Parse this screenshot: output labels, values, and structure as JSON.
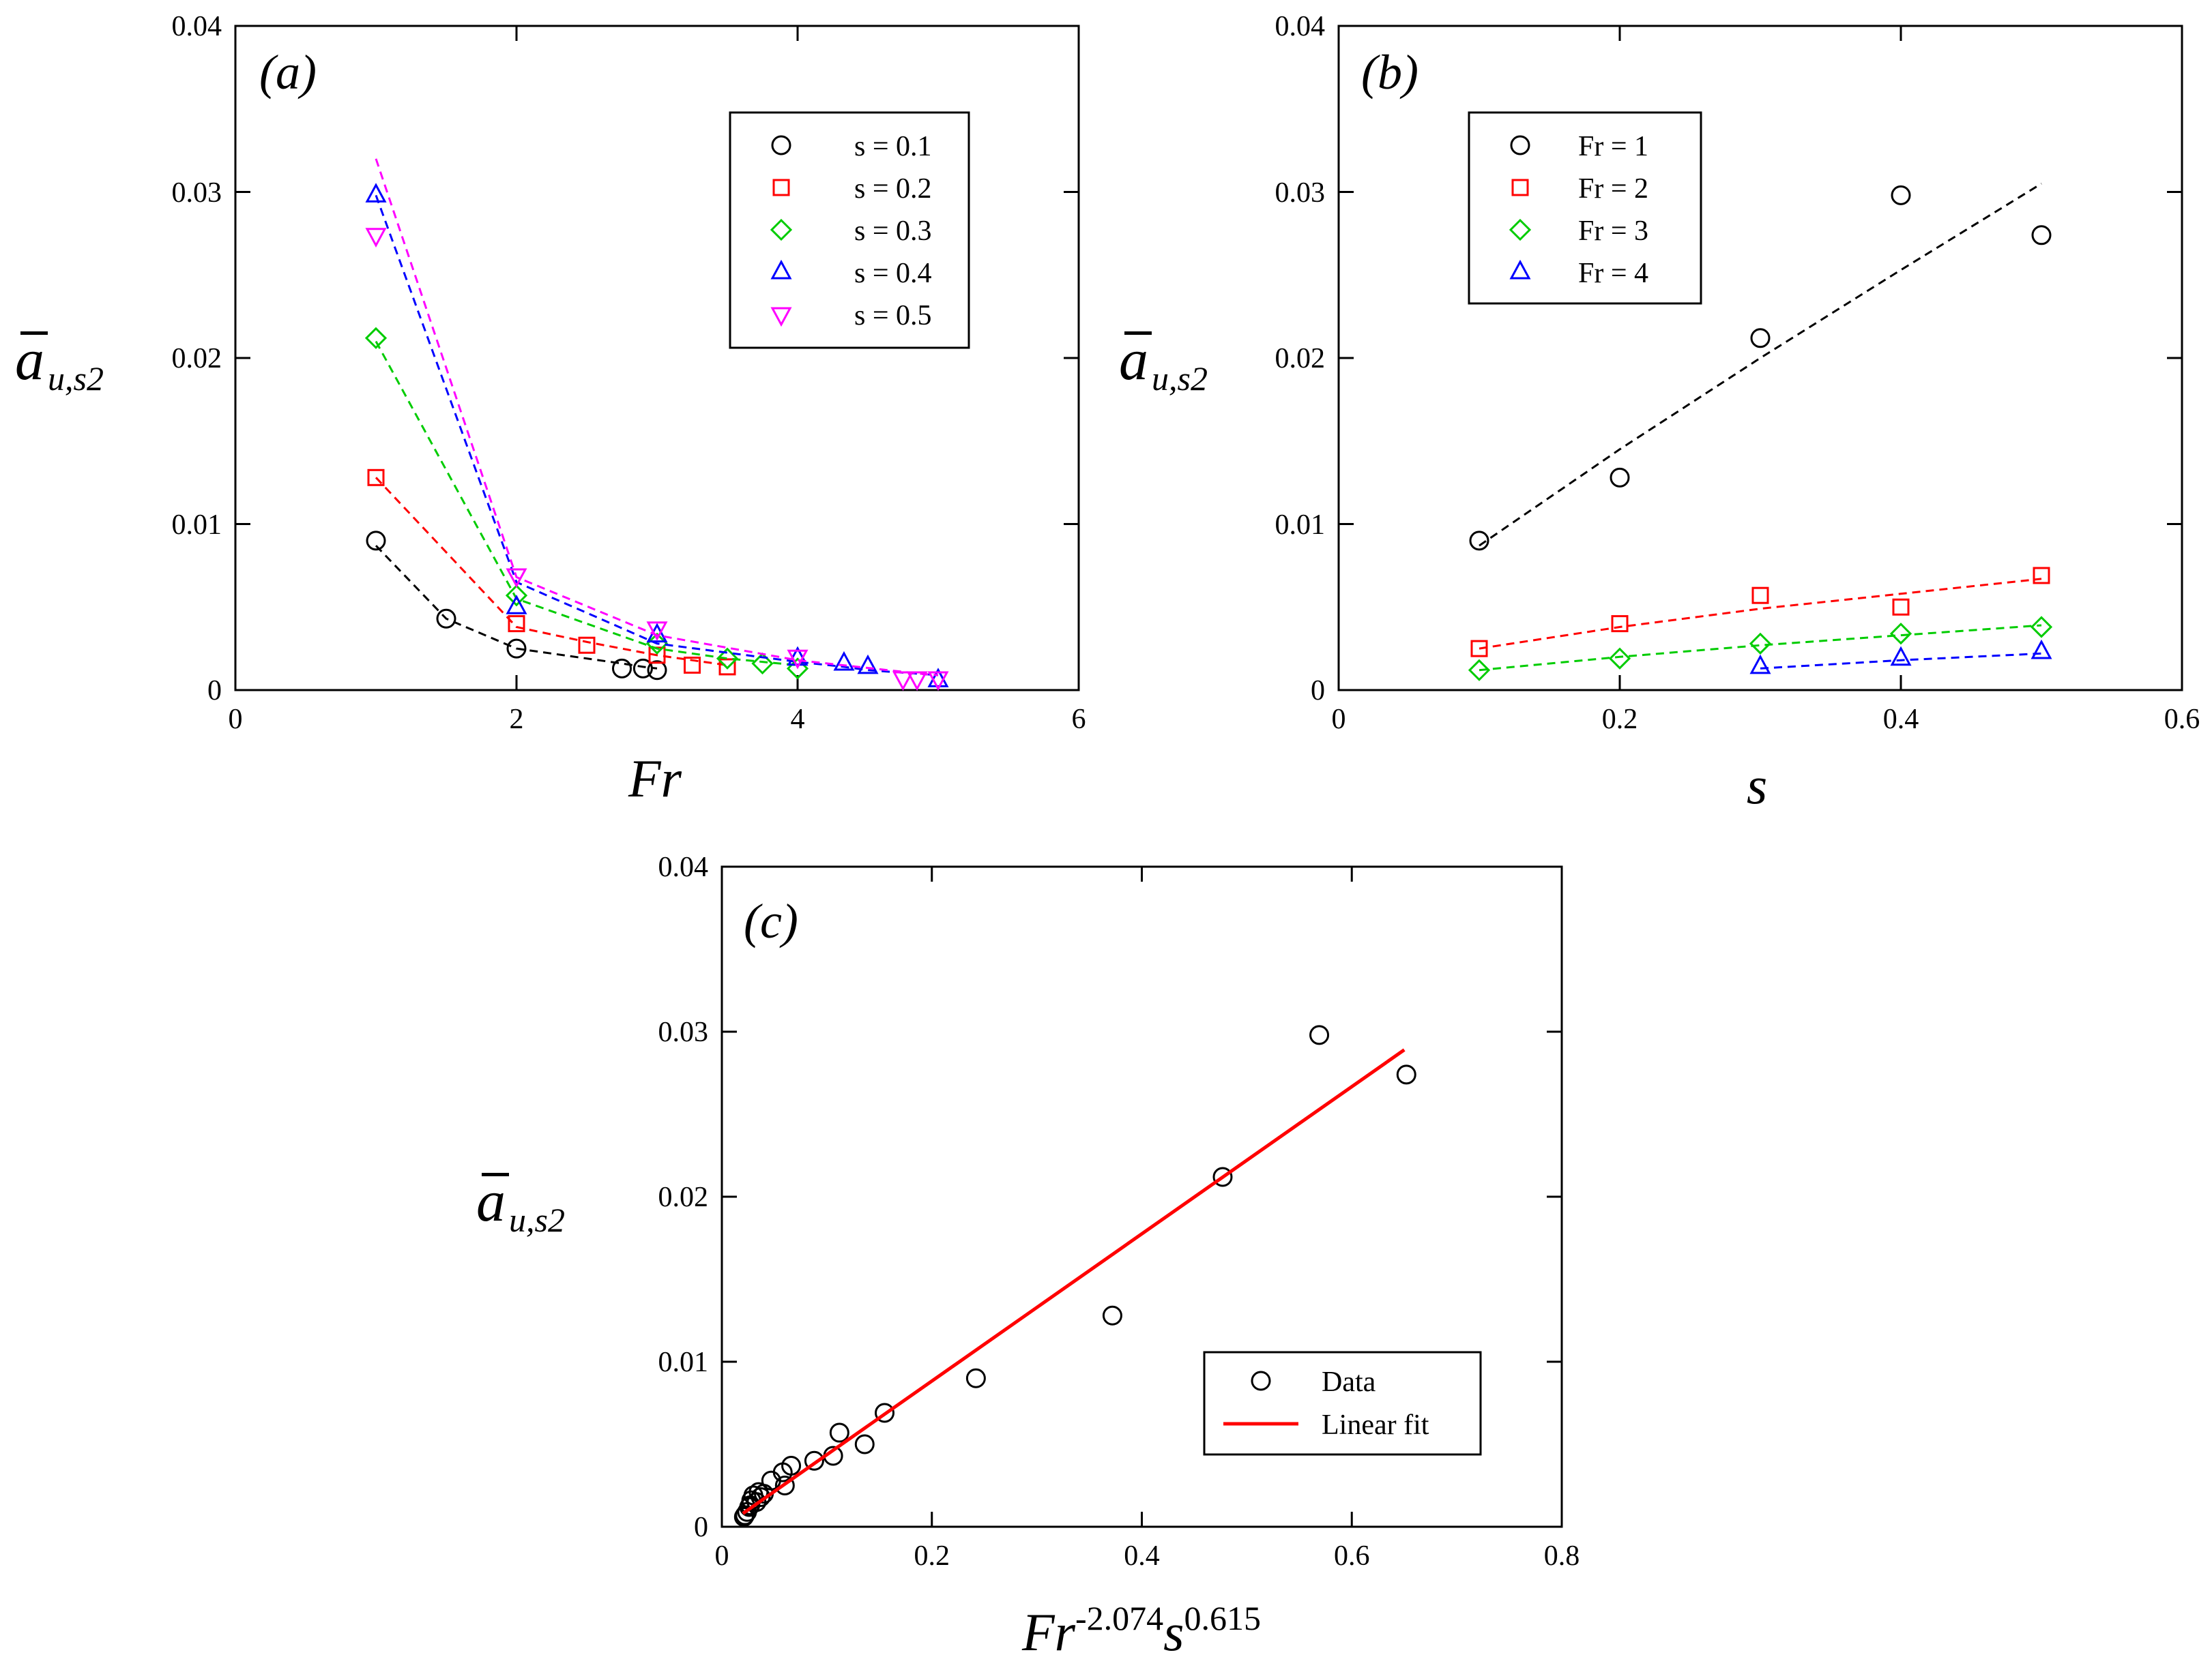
{
  "chart_data": [
    {
      "panel": "(a)",
      "type": "scatter",
      "xlabel": "Fr",
      "ylabel": "ā_u,s2",
      "xlim": [
        0,
        6
      ],
      "ylim": [
        0,
        0.04
      ],
      "xticks": [
        "0",
        "2",
        "4",
        "6"
      ],
      "yticks": [
        "0",
        "0.01",
        "0.02",
        "0.03",
        "0.04"
      ],
      "legend_position": "top-right",
      "series": [
        {
          "name": "s = 0.1",
          "marker": "circle",
          "color": "#000000",
          "x": [
            1,
            1.5,
            2,
            2.75,
            2.9,
            3
          ],
          "y": [
            0.009,
            0.0043,
            0.0025,
            0.0013,
            0.0013,
            0.0012
          ],
          "fit_x": [
            1,
            1.5,
            2,
            2.75,
            2.9,
            3
          ],
          "fit_y": [
            0.0087,
            0.0043,
            0.0025,
            0.0016,
            0.0014,
            0.0013
          ]
        },
        {
          "name": "s = 0.2",
          "marker": "square",
          "color": "#ff0000",
          "x": [
            1,
            2,
            2.5,
            3,
            3.25,
            3.5
          ],
          "y": [
            0.0128,
            0.004,
            0.0027,
            0.0021,
            0.0015,
            0.0014
          ],
          "fit_x": [
            1,
            2,
            2.5,
            3,
            3.25,
            3.5
          ],
          "fit_y": [
            0.0128,
            0.0038,
            0.0029,
            0.0021,
            0.0018,
            0.0015
          ]
        },
        {
          "name": "s = 0.3",
          "marker": "diamond",
          "color": "#00cc00",
          "x": [
            1,
            2,
            3,
            3.5,
            3.75,
            4
          ],
          "y": [
            0.0212,
            0.0057,
            0.0028,
            0.0019,
            0.0016,
            0.0013
          ],
          "fit_x": [
            1,
            2,
            3,
            3.5,
            3.75,
            4
          ],
          "fit_y": [
            0.021,
            0.0055,
            0.0025,
            0.0019,
            0.0017,
            0.0015
          ]
        },
        {
          "name": "s = 0.4",
          "marker": "triangle-up",
          "color": "#0000ff",
          "x": [
            1,
            2,
            3,
            4,
            4.33,
            4.5,
            5
          ],
          "y": [
            0.0298,
            0.005,
            0.0033,
            0.0019,
            0.0016,
            0.0014,
            0.0006
          ],
          "fit_x": [
            1,
            2,
            3,
            4,
            4.33,
            4.5,
            5
          ],
          "fit_y": [
            0.0298,
            0.0065,
            0.0028,
            0.0017,
            0.0014,
            0.0012,
            0.0009
          ]
        },
        {
          "name": "s = 0.5",
          "marker": "triangle-down",
          "color": "#ff00ff",
          "x": [
            1,
            2,
            3,
            4,
            4.75,
            4.85,
            5
          ],
          "y": [
            0.0274,
            0.0069,
            0.0037,
            0.002,
            0.0007,
            0.0007,
            0.0007
          ],
          "fit_x": [
            1,
            2,
            3,
            4,
            4.75,
            4.85,
            5
          ],
          "fit_y": [
            0.032,
            0.0068,
            0.0033,
            0.0018,
            0.0011,
            0.001,
            0.0009
          ]
        }
      ]
    },
    {
      "panel": "(b)",
      "type": "scatter",
      "xlabel": "s",
      "ylabel": "ā_u,s2",
      "xlim": [
        0,
        0.6
      ],
      "ylim": [
        0,
        0.04
      ],
      "xticks": [
        "0",
        "0.2",
        "0.4",
        "0.6"
      ],
      "yticks": [
        "0",
        "0.01",
        "0.02",
        "0.03",
        "0.04"
      ],
      "legend_position": "top-left",
      "series": [
        {
          "name": "Fr = 1",
          "marker": "circle",
          "color": "#000000",
          "x": [
            0.1,
            0.2,
            0.3,
            0.4,
            0.5
          ],
          "y": [
            0.009,
            0.0128,
            0.0212,
            0.0298,
            0.0274
          ],
          "fit_x": [
            0.1,
            0.2,
            0.3,
            0.4,
            0.5
          ],
          "fit_y": [
            0.0087,
            0.0145,
            0.02,
            0.0253,
            0.0305
          ]
        },
        {
          "name": "Fr = 2",
          "marker": "square",
          "color": "#ff0000",
          "x": [
            0.1,
            0.2,
            0.3,
            0.4,
            0.5
          ],
          "y": [
            0.0025,
            0.004,
            0.0057,
            0.005,
            0.0069
          ],
          "fit_x": [
            0.1,
            0.2,
            0.3,
            0.4,
            0.5
          ],
          "fit_y": [
            0.0025,
            0.0038,
            0.0049,
            0.0058,
            0.0067
          ]
        },
        {
          "name": "Fr = 3",
          "marker": "diamond",
          "color": "#00cc00",
          "x": [
            0.1,
            0.2,
            0.3,
            0.4,
            0.5
          ],
          "y": [
            0.0012,
            0.0019,
            0.0028,
            0.0034,
            0.0038
          ],
          "fit_x": [
            0.1,
            0.2,
            0.3,
            0.4,
            0.5
          ],
          "fit_y": [
            0.0012,
            0.002,
            0.0027,
            0.0033,
            0.0039
          ]
        },
        {
          "name": "Fr = 4",
          "marker": "triangle-up",
          "color": "#0000ff",
          "x": [
            0.3,
            0.4,
            0.5
          ],
          "y": [
            0.0014,
            0.0019,
            0.0023
          ],
          "fit_x": [
            0.3,
            0.4,
            0.5
          ],
          "fit_y": [
            0.0013,
            0.0018,
            0.0022
          ]
        }
      ]
    },
    {
      "panel": "(c)",
      "type": "scatter",
      "xlabel": "Fr",
      "xlabel_sup1": "-2.074",
      "xlabel_mid": "s",
      "xlabel_sup2": "0.615",
      "ylabel": "ā_u,s2",
      "xlim": [
        0,
        0.8
      ],
      "ylim": [
        0,
        0.04
      ],
      "xticks": [
        "0",
        "0.2",
        "0.4",
        "0.6",
        "0.8"
      ],
      "yticks": [
        "0",
        "0.01",
        "0.02",
        "0.03",
        "0.04"
      ],
      "legend_position": "bottom-right",
      "series": [
        {
          "name": "Data",
          "marker": "circle",
          "color": "#000000",
          "x": [
            0.242,
            0.372,
            0.477,
            0.569,
            0.652,
            0.106,
            0.112,
            0.136,
            0.155,
            0.088,
            0.066,
            0.058,
            0.06,
            0.047,
            0.04,
            0.035,
            0.03,
            0.037,
            0.033,
            0.028,
            0.027,
            0.026,
            0.022,
            0.024,
            0.021
          ],
          "y": [
            0.009,
            0.0128,
            0.0212,
            0.0298,
            0.0274,
            0.0043,
            0.0057,
            0.005,
            0.0069,
            0.004,
            0.0037,
            0.0033,
            0.0025,
            0.0028,
            0.002,
            0.0021,
            0.0019,
            0.0018,
            0.0015,
            0.0016,
            0.0013,
            0.0012,
            0.0007,
            0.0009,
            0.0006
          ]
        },
        {
          "name": "Linear fit",
          "marker": "line",
          "color": "#ff0000",
          "fit_x": [
            0.02,
            0.65
          ],
          "fit_y": [
            0.0008,
            0.0289
          ]
        }
      ]
    }
  ]
}
